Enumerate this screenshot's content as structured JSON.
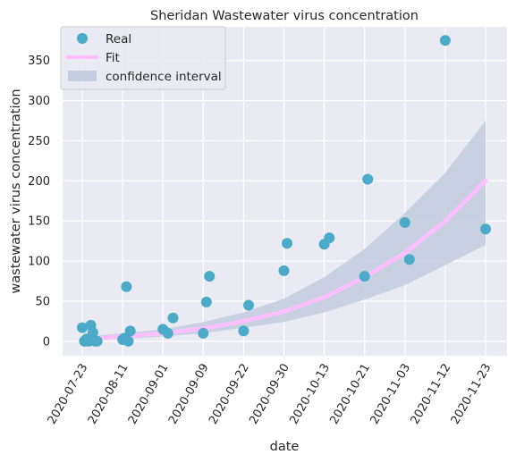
{
  "chart_data": {
    "type": "scatter",
    "title": "Sheridan Wastewater virus concentration",
    "xlabel": "date",
    "ylabel": "wastewater virus concentration",
    "x_ticks": [
      "2020-07-23",
      "2020-08-11",
      "2020-09-01",
      "2020-09-09",
      "2020-09-22",
      "2020-09-30",
      "2020-10-13",
      "2020-10-21",
      "2020-11-03",
      "2020-11-12",
      "2020-11-23"
    ],
    "y_ticks": [
      0,
      50,
      100,
      150,
      200,
      250,
      300,
      350
    ],
    "ylim": [
      -18,
      392
    ],
    "grid": true,
    "legend_position": "top-left",
    "series": [
      {
        "name": "Real",
        "kind": "scatter",
        "color": "#4aaac8",
        "points": [
          [
            "2020-07-23",
            17
          ],
          [
            "2020-07-24",
            0
          ],
          [
            "2020-07-25",
            3
          ],
          [
            "2020-07-26",
            0
          ],
          [
            "2020-07-27",
            20
          ],
          [
            "2020-07-28",
            11
          ],
          [
            "2020-07-29",
            0
          ],
          [
            "2020-07-30",
            0
          ],
          [
            "2020-08-11",
            2
          ],
          [
            "2020-08-12",
            4
          ],
          [
            "2020-08-13",
            68
          ],
          [
            "2020-08-14",
            0
          ],
          [
            "2020-08-15",
            13
          ],
          [
            "2020-09-01",
            15
          ],
          [
            "2020-09-02",
            10
          ],
          [
            "2020-09-03",
            29
          ],
          [
            "2020-09-09",
            10
          ],
          [
            "2020-09-10",
            49
          ],
          [
            "2020-09-11",
            81
          ],
          [
            "2020-09-22",
            13
          ],
          [
            "2020-09-23",
            45
          ],
          [
            "2020-09-30",
            88
          ],
          [
            "2020-10-01",
            122
          ],
          [
            "2020-10-13",
            121
          ],
          [
            "2020-10-14",
            129
          ],
          [
            "2020-10-21",
            81
          ],
          [
            "2020-10-22",
            202
          ],
          [
            "2020-11-03",
            148
          ],
          [
            "2020-11-04",
            102
          ],
          [
            "2020-11-12",
            375
          ],
          [
            "2020-11-23",
            140
          ]
        ]
      },
      {
        "name": "Fit",
        "kind": "line",
        "color": "#ffbfff",
        "points": [
          [
            "2020-07-23",
            2
          ],
          [
            "2020-08-11",
            6
          ],
          [
            "2020-09-01",
            10
          ],
          [
            "2020-09-09",
            16
          ],
          [
            "2020-09-22",
            25
          ],
          [
            "2020-09-30",
            37
          ],
          [
            "2020-10-13",
            55
          ],
          [
            "2020-10-21",
            80
          ],
          [
            "2020-11-03",
            110
          ],
          [
            "2020-11-12",
            150
          ],
          [
            "2020-11-23",
            200
          ]
        ]
      },
      {
        "name": "confidence interval",
        "kind": "band",
        "color": "#c5cde0",
        "lower": [
          [
            "2020-07-23",
            1
          ],
          [
            "2020-08-11",
            3
          ],
          [
            "2020-09-01",
            6
          ],
          [
            "2020-09-09",
            10
          ],
          [
            "2020-09-22",
            17
          ],
          [
            "2020-09-30",
            24
          ],
          [
            "2020-10-13",
            36
          ],
          [
            "2020-10-21",
            52
          ],
          [
            "2020-11-03",
            70
          ],
          [
            "2020-11-12",
            95
          ],
          [
            "2020-11-23",
            120
          ]
        ],
        "upper": [
          [
            "2020-07-23",
            5
          ],
          [
            "2020-08-11",
            10
          ],
          [
            "2020-09-01",
            15
          ],
          [
            "2020-09-09",
            24
          ],
          [
            "2020-09-22",
            36
          ],
          [
            "2020-09-30",
            53
          ],
          [
            "2020-10-13",
            80
          ],
          [
            "2020-10-21",
            115
          ],
          [
            "2020-11-03",
            160
          ],
          [
            "2020-11-12",
            210
          ],
          [
            "2020-11-23",
            275
          ]
        ]
      }
    ]
  }
}
